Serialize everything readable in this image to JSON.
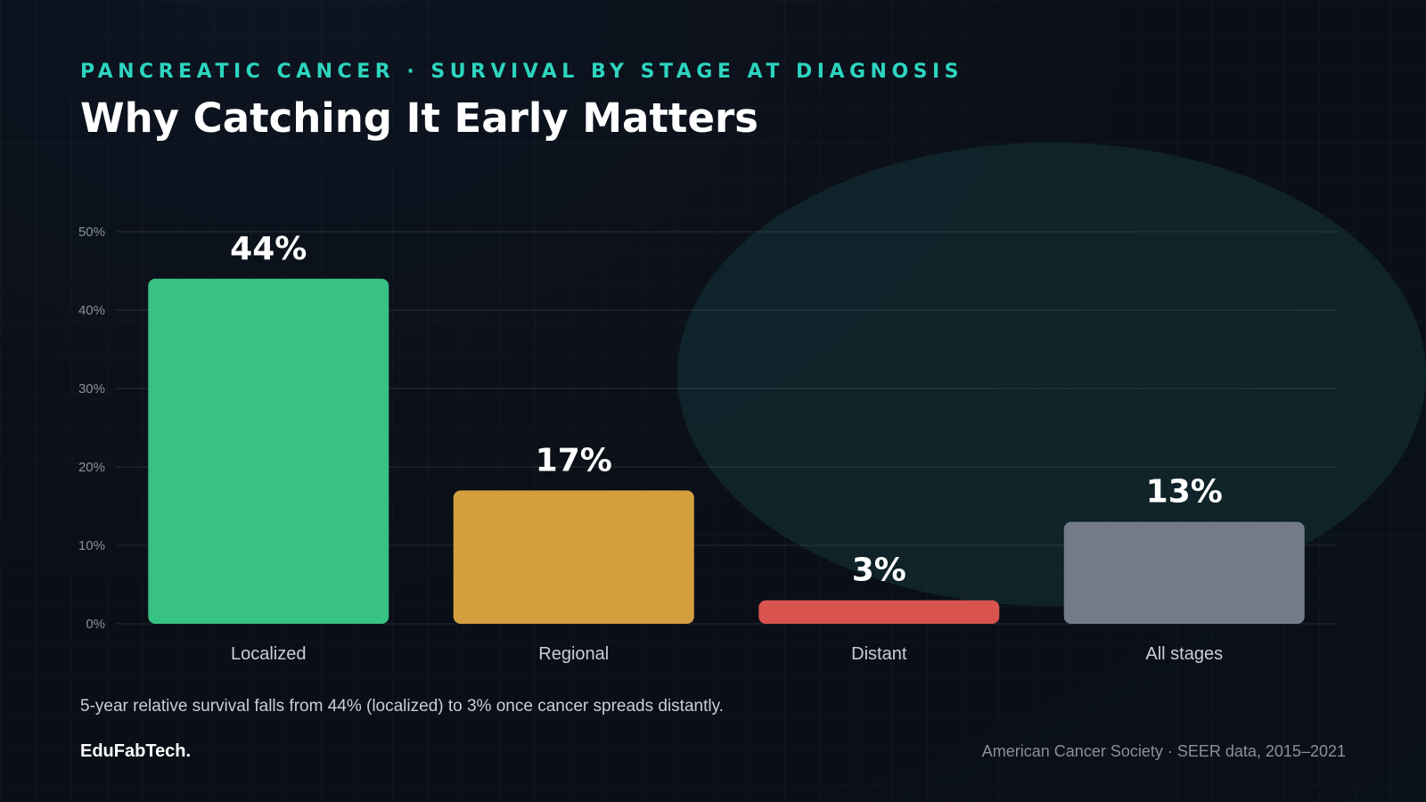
{
  "header": {
    "kicker": "PANCREATIC CANCER · SURVIVAL BY STAGE AT DIAGNOSIS",
    "title": "Why Catching It Early Matters"
  },
  "chart_data": {
    "type": "bar",
    "categories": [
      "Localized",
      "Regional",
      "Distant",
      "All stages"
    ],
    "values": [
      44,
      17,
      3,
      13
    ],
    "value_labels": [
      "44%",
      "17%",
      "3%",
      "13%"
    ],
    "colors": [
      "#37c183",
      "#d4a03f",
      "#d9534f",
      "#737b8a"
    ],
    "ylim": [
      0,
      50
    ],
    "yticks": [
      0,
      10,
      20,
      30,
      40,
      50
    ],
    "ytick_labels": [
      "0%",
      "10%",
      "20%",
      "30%",
      "40%",
      "50%"
    ],
    "grid": true,
    "xlabel": "",
    "ylabel": ""
  },
  "caption": "5-year relative survival falls from 44% (localized) to 3% once cancer spreads distantly.",
  "footer": {
    "brand": "EduFabTech.",
    "source": "American Cancer Society · SEER data, 2015–2021"
  },
  "colors": {
    "accent": "#2dd4bf",
    "background": "#0b0f18"
  }
}
